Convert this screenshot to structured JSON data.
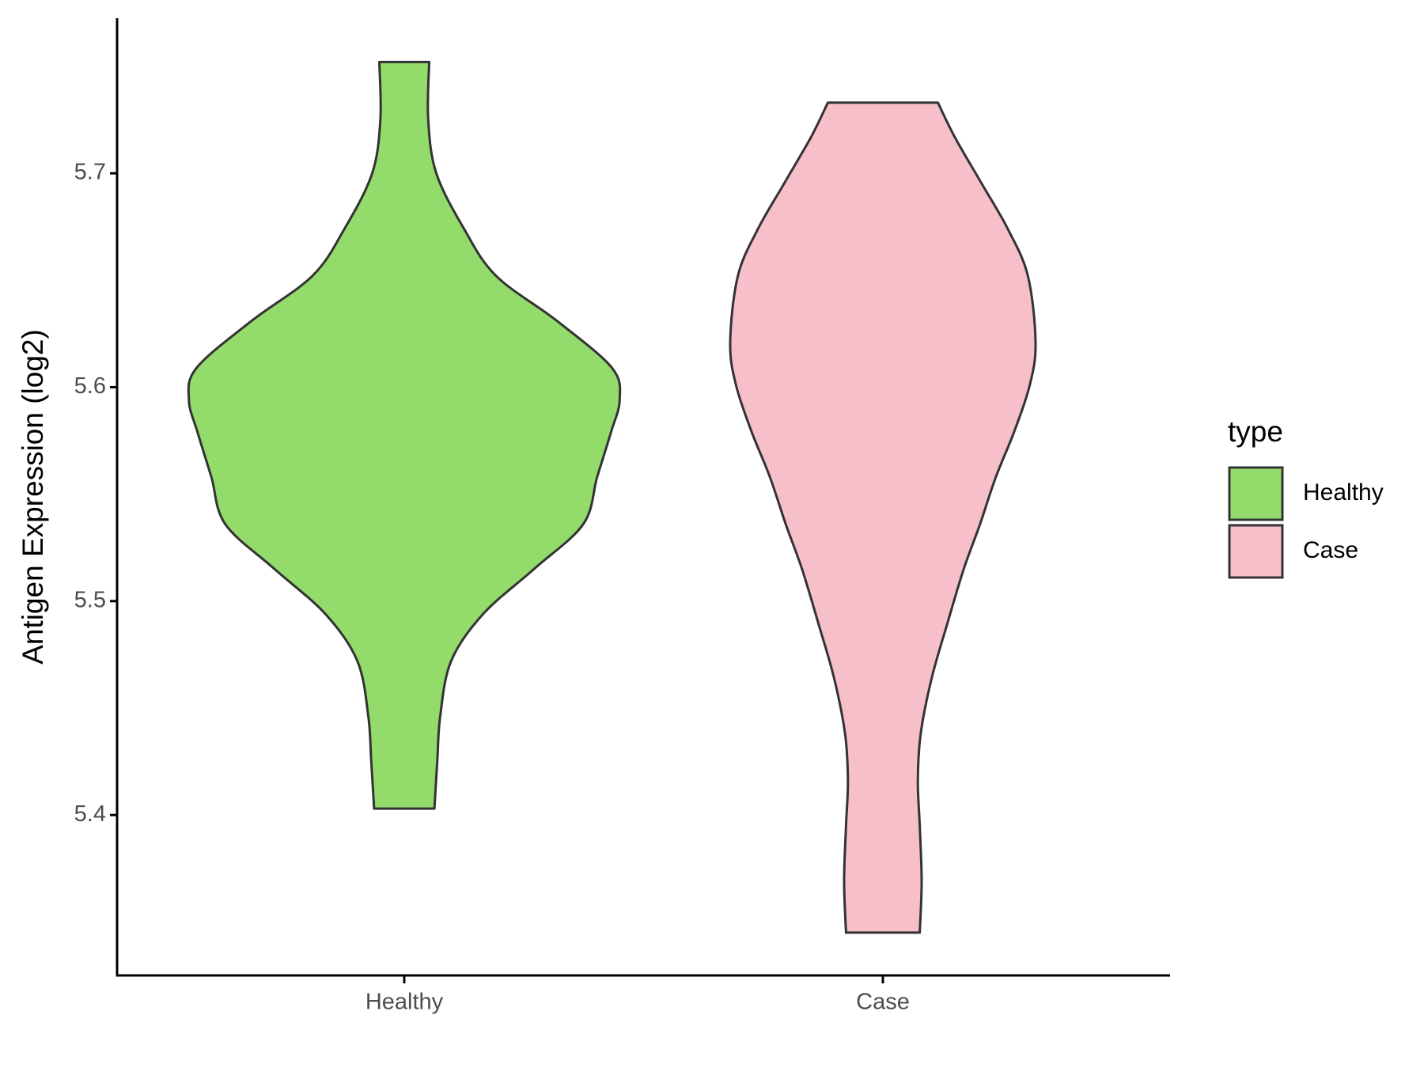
{
  "chart_data": {
    "type": "violin",
    "y_label": "Antigen Expression (log2)",
    "categories": [
      "Healthy",
      "Case"
    ],
    "series": [
      {
        "name": "Healthy",
        "color": "#93dc6b",
        "y": [
          5.752,
          5.725,
          5.7,
          5.674,
          5.652,
          5.631,
          5.609,
          5.594,
          5.579,
          5.558,
          5.536,
          5.515,
          5.494,
          5.472,
          5.446,
          5.425,
          5.403
        ],
        "width": [
          0.052,
          0.05,
          0.067,
          0.125,
          0.192,
          0.319,
          0.434,
          0.45,
          0.432,
          0.403,
          0.374,
          0.271,
          0.165,
          0.098,
          0.075,
          0.069,
          0.063
        ]
      },
      {
        "name": "Case",
        "color": "#f7bfca",
        "y": [
          5.733,
          5.717,
          5.695,
          5.674,
          5.652,
          5.621,
          5.601,
          5.579,
          5.558,
          5.536,
          5.515,
          5.489,
          5.464,
          5.438,
          5.416,
          5.395,
          5.369,
          5.345
        ],
        "width": [
          0.115,
          0.15,
          0.207,
          0.261,
          0.303,
          0.319,
          0.307,
          0.274,
          0.236,
          0.203,
          0.169,
          0.134,
          0.102,
          0.079,
          0.073,
          0.077,
          0.081,
          0.077
        ]
      }
    ],
    "ylim": [
      5.325,
      5.7725
    ],
    "yticks": [
      5.4,
      5.5,
      5.6,
      5.7
    ],
    "legend_title": "type",
    "legend_position": "right",
    "grid": false
  }
}
